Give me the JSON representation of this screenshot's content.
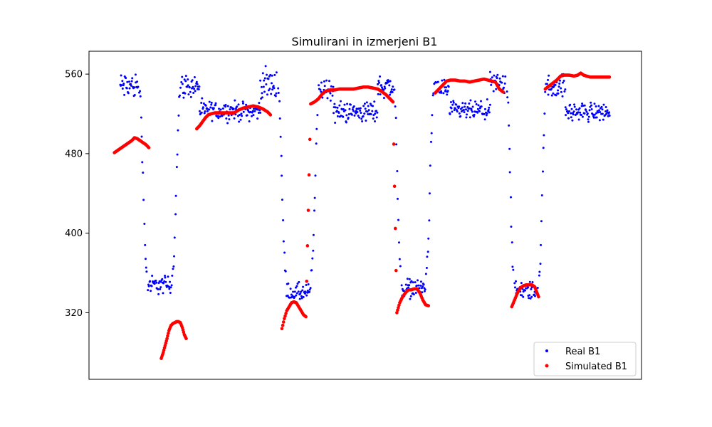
{
  "chart_data": {
    "type": "scatter",
    "title": "Simulirani in izmerjeni B1",
    "xlabel": "",
    "ylabel": "",
    "ylim": [
      253,
      583
    ],
    "xlim": [
      -23,
      1131
    ],
    "xticks_visible": false,
    "yticks": [
      320,
      400,
      480,
      560
    ],
    "grid": false,
    "legend": {
      "placement": "bottom-right"
    },
    "series": [
      {
        "name": "Real B1",
        "color": "#0000ff",
        "marker": "dot",
        "segments": [
          {
            "x_start": 42,
            "x_end": 80,
            "level_mean": 548,
            "level_noise": 12
          },
          {
            "x_start": 82,
            "x_end": 98,
            "trans_from": 545,
            "trans_to": 360
          },
          {
            "x_start": 100,
            "x_end": 150,
            "level_mean": 348,
            "level_noise": 8
          },
          {
            "x_start": 151,
            "x_end": 168,
            "trans_from": 360,
            "trans_to": 545
          },
          {
            "x_start": 170,
            "x_end": 208,
            "level_mean": 548,
            "level_noise": 10
          },
          {
            "x_start": 208,
            "x_end": 335,
            "level_mean": 523,
            "level_noise": 8
          },
          {
            "x_start": 335,
            "x_end": 370,
            "level_mean": 550,
            "level_noise": 12
          },
          {
            "x_start": 372,
            "x_end": 388,
            "trans_from": 545,
            "trans_to": 360
          },
          {
            "x_start": 390,
            "x_end": 440,
            "level_mean": 340,
            "level_noise": 8
          },
          {
            "x_start": 441,
            "x_end": 458,
            "trans_from": 360,
            "trans_to": 545
          },
          {
            "x_start": 460,
            "x_end": 488,
            "level_mean": 545,
            "level_noise": 10
          },
          {
            "x_start": 488,
            "x_end": 580,
            "level_mean": 522,
            "level_noise": 9
          },
          {
            "x_start": 580,
            "x_end": 612,
            "level_mean": 548,
            "level_noise": 10
          },
          {
            "x_start": 614,
            "x_end": 628,
            "trans_from": 545,
            "trans_to": 360
          },
          {
            "x_start": 630,
            "x_end": 680,
            "level_mean": 345,
            "level_noise": 8
          },
          {
            "x_start": 681,
            "x_end": 698,
            "trans_from": 360,
            "trans_to": 545
          },
          {
            "x_start": 700,
            "x_end": 730,
            "level_mean": 545,
            "level_noise": 10
          },
          {
            "x_start": 730,
            "x_end": 815,
            "level_mean": 523,
            "level_noise": 8
          },
          {
            "x_start": 815,
            "x_end": 848,
            "level_mean": 550,
            "level_noise": 10
          },
          {
            "x_start": 850,
            "x_end": 864,
            "trans_from": 545,
            "trans_to": 360
          },
          {
            "x_start": 866,
            "x_end": 916,
            "level_mean": 342,
            "level_noise": 8
          },
          {
            "x_start": 917,
            "x_end": 932,
            "trans_from": 360,
            "trans_to": 545
          },
          {
            "x_start": 934,
            "x_end": 972,
            "level_mean": 548,
            "level_noise": 10
          },
          {
            "x_start": 972,
            "x_end": 1065,
            "level_mean": 522,
            "level_noise": 8
          }
        ]
      },
      {
        "name": "Simulated B1",
        "color": "#ff0000",
        "marker": "dot",
        "points": [
          [
            30,
            481
          ],
          [
            36,
            483
          ],
          [
            42,
            485
          ],
          [
            48,
            487
          ],
          [
            54,
            489
          ],
          [
            60,
            491
          ],
          [
            66,
            493
          ],
          [
            72,
            496
          ],
          [
            78,
            495
          ],
          [
            84,
            493
          ],
          [
            90,
            491
          ],
          [
            96,
            489
          ],
          [
            102,
            486
          ],
          [
            128,
            274
          ],
          [
            132,
            280
          ],
          [
            136,
            287
          ],
          [
            140,
            294
          ],
          [
            144,
            302
          ],
          [
            148,
            307
          ],
          [
            152,
            309
          ],
          [
            156,
            310
          ],
          [
            160,
            311
          ],
          [
            164,
            311
          ],
          [
            168,
            310
          ],
          [
            172,
            305
          ],
          [
            176,
            298
          ],
          [
            180,
            294
          ],
          [
            202,
            505
          ],
          [
            208,
            508
          ],
          [
            214,
            512
          ],
          [
            220,
            516
          ],
          [
            226,
            519
          ],
          [
            232,
            520
          ],
          [
            240,
            521
          ],
          [
            250,
            521
          ],
          [
            260,
            521
          ],
          [
            270,
            521
          ],
          [
            280,
            521
          ],
          [
            290,
            524
          ],
          [
            300,
            526
          ],
          [
            310,
            527
          ],
          [
            320,
            528
          ],
          [
            330,
            527
          ],
          [
            340,
            525
          ],
          [
            350,
            522
          ],
          [
            356,
            519
          ],
          [
            380,
            304
          ],
          [
            385,
            314
          ],
          [
            390,
            322
          ],
          [
            395,
            326
          ],
          [
            400,
            330
          ],
          [
            405,
            331
          ],
          [
            410,
            330
          ],
          [
            415,
            326
          ],
          [
            420,
            322
          ],
          [
            425,
            318
          ],
          [
            430,
            316
          ],
          [
            440,
            530
          ],
          [
            448,
            532
          ],
          [
            456,
            535
          ],
          [
            464,
            540
          ],
          [
            472,
            543
          ],
          [
            480,
            544
          ],
          [
            490,
            544
          ],
          [
            500,
            545
          ],
          [
            510,
            545
          ],
          [
            520,
            545
          ],
          [
            530,
            545
          ],
          [
            540,
            546
          ],
          [
            550,
            547
          ],
          [
            560,
            547
          ],
          [
            570,
            546
          ],
          [
            580,
            545
          ],
          [
            590,
            542
          ],
          [
            598,
            539
          ],
          [
            606,
            535
          ],
          [
            612,
            532
          ],
          [
            620,
            320
          ],
          [
            626,
            330
          ],
          [
            632,
            336
          ],
          [
            638,
            340
          ],
          [
            644,
            343
          ],
          [
            650,
            343
          ],
          [
            656,
            344
          ],
          [
            662,
            344
          ],
          [
            668,
            340
          ],
          [
            674,
            333
          ],
          [
            680,
            328
          ],
          [
            686,
            327
          ],
          [
            700,
            541
          ],
          [
            708,
            545
          ],
          [
            716,
            549
          ],
          [
            724,
            553
          ],
          [
            732,
            554
          ],
          [
            742,
            554
          ],
          [
            752,
            553
          ],
          [
            762,
            553
          ],
          [
            772,
            552
          ],
          [
            782,
            553
          ],
          [
            792,
            554
          ],
          [
            802,
            555
          ],
          [
            810,
            554
          ],
          [
            818,
            553
          ],
          [
            826,
            552
          ],
          [
            834,
            545
          ],
          [
            842,
            542
          ],
          [
            860,
            326
          ],
          [
            866,
            333
          ],
          [
            872,
            340
          ],
          [
            878,
            345
          ],
          [
            884,
            347
          ],
          [
            890,
            348
          ],
          [
            896,
            348
          ],
          [
            902,
            348
          ],
          [
            908,
            346
          ],
          [
            912,
            341
          ],
          [
            916,
            336
          ],
          [
            930,
            545
          ],
          [
            938,
            548
          ],
          [
            946,
            551
          ],
          [
            954,
            554
          ],
          [
            962,
            558
          ],
          [
            970,
            559
          ],
          [
            980,
            559
          ],
          [
            990,
            558
          ],
          [
            998,
            559
          ],
          [
            1004,
            561
          ],
          [
            1010,
            559
          ],
          [
            1016,
            558
          ],
          [
            1024,
            557
          ],
          [
            1034,
            557
          ],
          [
            1044,
            557
          ],
          [
            1054,
            557
          ],
          [
            1064,
            557
          ]
        ]
      }
    ]
  }
}
